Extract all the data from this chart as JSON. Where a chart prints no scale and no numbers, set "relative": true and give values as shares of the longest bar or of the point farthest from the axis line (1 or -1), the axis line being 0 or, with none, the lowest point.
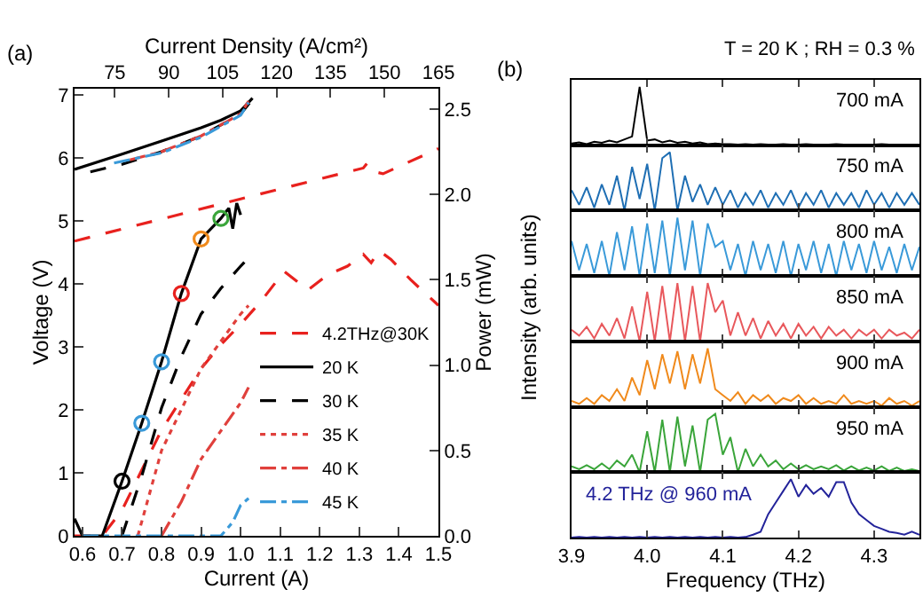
{
  "chart_data": [
    {
      "type": "line",
      "xlabel": "Current (A)",
      "ylabel": "Voltage (V)",
      "y2label": "Power (mW)",
      "x2label": "Current Density (A/cm²)",
      "annotations": [
        "(a)"
      ],
      "xlim": [
        0.58,
        1.5
      ],
      "xticks": [
        {
          "value": 0.6,
          "label": "0.6"
        },
        {
          "value": 0.7,
          "label": "0.7"
        },
        {
          "value": 0.8,
          "label": "0.8"
        },
        {
          "value": 0.9,
          "label": "0.9"
        },
        {
          "value": 1.0,
          "label": "1.0"
        },
        {
          "value": 1.1,
          "label": "1.1"
        },
        {
          "value": 1.2,
          "label": "1.2"
        },
        {
          "value": 1.3,
          "label": "1.3"
        },
        {
          "value": 1.4,
          "label": "1.4"
        },
        {
          "value": 1.5,
          "label": "1.5"
        }
      ],
      "x2lim": [
        63.8,
        165
      ],
      "x2ticks": [
        75,
        90,
        105,
        120,
        135,
        150,
        165
      ],
      "ylim": [
        0,
        7.1
      ],
      "yticks": [
        0,
        1,
        2,
        3,
        4,
        5,
        6,
        7
      ],
      "y2lim": [
        0,
        2.62
      ],
      "y2ticks": [
        {
          "value": 0,
          "label": "0.0"
        },
        {
          "value": 0.5,
          "label": "0.5"
        },
        {
          "value": 1.0,
          "label": "1.0"
        },
        {
          "value": 1.5,
          "label": "1.5"
        },
        {
          "value": 2.0,
          "label": "2.0"
        },
        {
          "value": 2.5,
          "label": "2.5"
        }
      ],
      "legend": "right",
      "series": [
        {
          "name": "4.2THz@30K",
          "color": "#e8211e",
          "line_style": "dashed",
          "axis": "y2",
          "x": [
            0.58,
            0.65,
            0.7,
            0.8,
            0.9,
            0.95,
            1.0,
            1.05,
            1.11,
            1.17,
            1.22,
            1.27,
            1.31,
            1.33,
            1.35,
            1.38,
            1.43,
            1.5
          ],
          "values": [
            0.0,
            0.0,
            0.15,
            0.62,
            0.98,
            1.12,
            1.24,
            1.37,
            1.55,
            1.44,
            1.53,
            1.58,
            1.65,
            1.6,
            1.67,
            1.62,
            1.5,
            1.35
          ]
        },
        {
          "name": "20 K",
          "color": "#000000",
          "line_style": "solid",
          "axis": "y2",
          "x": [
            0.58,
            0.6,
            0.65,
            0.7,
            0.75,
            0.8,
            0.85,
            0.9,
            0.95,
            0.97,
            0.98,
            0.99,
            1.0
          ],
          "values": [
            0.1,
            0.0,
            0.0,
            0.32,
            0.66,
            1.02,
            1.42,
            1.74,
            1.86,
            1.92,
            1.8,
            1.95,
            1.88
          ]
        },
        {
          "name": "30 K",
          "color": "#000000",
          "line_style": "dashed",
          "axis": "y2",
          "x": [
            0.7,
            0.75,
            0.8,
            0.85,
            0.9,
            0.95,
            1.0,
            1.02
          ],
          "values": [
            0.0,
            0.35,
            0.75,
            1.05,
            1.3,
            1.45,
            1.58,
            1.63
          ]
        },
        {
          "name": "35 K",
          "color": "#e0403c",
          "line_style": "dotted",
          "axis": "y2",
          "x": [
            0.74,
            0.8,
            0.9,
            1.0,
            1.02
          ],
          "values": [
            0.0,
            0.5,
            0.98,
            1.3,
            1.35
          ]
        },
        {
          "name": "40 K",
          "color": "#e0403c",
          "line_style": "dashdot",
          "axis": "y2",
          "x": [
            0.8,
            0.85,
            0.9,
            1.0,
            1.02
          ],
          "values": [
            0.0,
            0.2,
            0.45,
            0.78,
            0.87
          ]
        },
        {
          "name": "45 K",
          "color": "#3a9ad9",
          "line_style": "dashdot",
          "axis": "y2",
          "x": [
            0.6,
            0.95,
            0.98,
            1.0,
            1.02
          ],
          "values": [
            0.0,
            0.0,
            0.08,
            0.18,
            0.22
          ]
        },
        {
          "type": "scatter",
          "marker": "circle",
          "axis": "y2",
          "x": [
            0.7,
            0.75,
            0.8,
            0.85,
            0.9,
            0.95
          ],
          "values": [
            0.32,
            0.66,
            1.02,
            1.42,
            1.74,
            1.86
          ],
          "colors": [
            "#000000",
            "#3a9ad9",
            "#3a9ad9",
            "#e8211e",
            "#f08a1c",
            "#3aa53a"
          ]
        },
        {
          "color": "#e8211e",
          "line_style": "dashed",
          "x": [
            0.58,
            1.0,
            1.31,
            1.32,
            1.34,
            1.36,
            1.5
          ],
          "values": [
            4.68,
            5.35,
            5.84,
            5.92,
            5.78,
            5.75,
            6.15
          ]
        },
        {
          "color": "#000000",
          "line_style": "solid",
          "x": [
            0.58,
            0.7,
            0.8,
            0.9,
            0.95,
            1.0,
            1.03
          ],
          "values": [
            5.82,
            6.06,
            6.27,
            6.48,
            6.6,
            6.75,
            6.95
          ]
        },
        {
          "color": "#000000",
          "line_style": "dashed",
          "x": [
            0.62,
            0.7,
            0.8,
            0.9,
            1.0,
            1.03
          ],
          "values": [
            5.78,
            5.9,
            6.1,
            6.35,
            6.7,
            6.93
          ]
        },
        {
          "color": "#e0403c",
          "line_style": "dashdot",
          "x": [
            0.72,
            0.8,
            0.9,
            1.0,
            1.02
          ],
          "values": [
            5.97,
            6.1,
            6.35,
            6.7,
            6.9
          ]
        },
        {
          "color": "#3a9ad9",
          "line_style": "dashdot",
          "x": [
            0.68,
            0.8,
            0.9,
            1.0,
            1.02
          ],
          "values": [
            5.92,
            6.08,
            6.33,
            6.68,
            6.88
          ]
        }
      ]
    },
    {
      "type": "line",
      "relative": true,
      "title": "T = 20 K ; RH = 0.3 %",
      "annotations": [
        "(b)",
        "700 mA"
      ],
      "tick_labels": false,
      "xlim": [
        3.9,
        4.36
      ],
      "xticks": [
        {
          "value": 3.9,
          "label": null
        },
        {
          "value": 4.0,
          "label": null
        },
        {
          "value": 4.1,
          "label": null
        },
        {
          "value": 4.2,
          "label": null
        },
        {
          "value": 4.3,
          "label": null
        }
      ],
      "series": [
        {
          "color": "#000000",
          "x": [
            3.9,
            3.91,
            3.92,
            3.93,
            3.94,
            3.95,
            3.96,
            3.97,
            3.98,
            3.99,
            4.0,
            4.01,
            4.02,
            4.03,
            4.04,
            4.05,
            4.06,
            4.07,
            4.08,
            4.09,
            4.1,
            4.11,
            4.12,
            4.13,
            4.14,
            4.15,
            4.16,
            4.17,
            4.18,
            4.19,
            4.2,
            4.21,
            4.22,
            4.23,
            4.24,
            4.25,
            4.26,
            4.27,
            4.28,
            4.29,
            4.3,
            4.31,
            4.32,
            4.33,
            4.34,
            4.35,
            4.36
          ],
          "values": [
            0.03,
            0.05,
            0.02,
            0.06,
            0.04,
            0.08,
            0.05,
            0.1,
            0.15,
            1.0,
            0.08,
            0.1,
            0.05,
            0.08,
            0.04,
            0.06,
            0.03,
            0.05,
            0.02,
            0.03,
            0.02,
            0.02,
            0.01,
            0.02,
            0.01,
            0.02,
            0.01,
            0.01,
            0.02,
            0.01,
            0.01,
            0.02,
            0.01,
            0.01,
            0.01,
            0.02,
            0.01,
            0.01,
            0.01,
            0.01,
            0.01,
            0.02,
            0.01,
            0.01,
            0.01,
            0.01,
            0.01
          ]
        }
      ]
    },
    {
      "type": "line",
      "relative": true,
      "annotations": [
        "750 mA"
      ],
      "tick_labels": false,
      "xlim": [
        3.9,
        4.36
      ],
      "xticks": [
        {
          "value": 3.9,
          "label": null
        },
        {
          "value": 4.0,
          "label": null
        },
        {
          "value": 4.1,
          "label": null
        },
        {
          "value": 4.2,
          "label": null
        },
        {
          "value": 4.3,
          "label": null
        }
      ],
      "series": [
        {
          "color": "#1f6fb4",
          "x": [
            3.9,
            3.91,
            3.92,
            3.93,
            3.94,
            3.95,
            3.96,
            3.97,
            3.98,
            3.99,
            4.0,
            4.01,
            4.02,
            4.03,
            4.04,
            4.05,
            4.06,
            4.07,
            4.08,
            4.09,
            4.1,
            4.11,
            4.12,
            4.13,
            4.14,
            4.15,
            4.16,
            4.17,
            4.18,
            4.19,
            4.2,
            4.21,
            4.22,
            4.23,
            4.24,
            4.25,
            4.26,
            4.27,
            4.28,
            4.29,
            4.3,
            4.31,
            4.32,
            4.33,
            4.34,
            4.35,
            4.36
          ],
          "values": [
            0.35,
            0.1,
            0.4,
            0.05,
            0.45,
            0.1,
            0.6,
            0.0,
            0.75,
            0.2,
            0.8,
            0.0,
            0.9,
            1.0,
            0.0,
            0.6,
            0.15,
            0.45,
            0.1,
            0.4,
            0.1,
            0.35,
            0.05,
            0.3,
            0.1,
            0.35,
            0.05,
            0.3,
            0.1,
            0.35,
            0.05,
            0.3,
            0.1,
            0.35,
            0.05,
            0.3,
            0.1,
            0.3,
            0.05,
            0.35,
            0.1,
            0.3,
            0.05,
            0.3,
            0.1,
            0.3,
            0.1
          ]
        }
      ]
    },
    {
      "type": "line",
      "relative": true,
      "annotations": [
        "800 mA"
      ],
      "tick_labels": false,
      "xlim": [
        3.9,
        4.36
      ],
      "xticks": [
        {
          "value": 3.9,
          "label": null
        },
        {
          "value": 4.0,
          "label": null
        },
        {
          "value": 4.1,
          "label": null
        },
        {
          "value": 4.2,
          "label": null
        },
        {
          "value": 4.3,
          "label": null
        }
      ],
      "series": [
        {
          "color": "#3a9ad9",
          "x": [
            3.9,
            3.91,
            3.92,
            3.93,
            3.94,
            3.95,
            3.96,
            3.97,
            3.98,
            3.99,
            4.0,
            4.01,
            4.02,
            4.03,
            4.04,
            4.05,
            4.06,
            4.07,
            4.08,
            4.09,
            4.1,
            4.11,
            4.12,
            4.13,
            4.14,
            4.15,
            4.16,
            4.17,
            4.18,
            4.19,
            4.2,
            4.21,
            4.22,
            4.23,
            4.24,
            4.25,
            4.26,
            4.27,
            4.28,
            4.29,
            4.3,
            4.31,
            4.32,
            4.33,
            4.34,
            4.35,
            4.36
          ],
          "values": [
            0.6,
            0.1,
            0.55,
            0.05,
            0.6,
            0.0,
            0.75,
            0.1,
            0.85,
            0.0,
            0.9,
            0.05,
            0.95,
            0.0,
            1.0,
            0.1,
            0.95,
            0.0,
            0.9,
            0.5,
            0.6,
            0.1,
            0.55,
            0.0,
            0.6,
            0.1,
            0.55,
            0.05,
            0.6,
            0.0,
            0.55,
            0.1,
            0.6,
            0.05,
            0.55,
            0.0,
            0.6,
            0.1,
            0.55,
            0.05,
            0.6,
            0.1,
            0.5,
            0.05,
            0.55,
            0.1,
            0.5
          ]
        }
      ]
    },
    {
      "type": "line",
      "relative": true,
      "ylabel": "Intensity (arb. units)",
      "annotations": [
        "850 mA"
      ],
      "tick_labels": false,
      "xlim": [
        3.9,
        4.36
      ],
      "xticks": [
        {
          "value": 3.9,
          "label": null
        },
        {
          "value": 4.0,
          "label": null
        },
        {
          "value": 4.1,
          "label": null
        },
        {
          "value": 4.2,
          "label": null
        },
        {
          "value": 4.3,
          "label": null
        }
      ],
      "series": [
        {
          "color": "#e8585c",
          "x": [
            3.9,
            3.91,
            3.92,
            3.93,
            3.94,
            3.95,
            3.96,
            3.97,
            3.98,
            3.99,
            4.0,
            4.01,
            4.02,
            4.03,
            4.04,
            4.05,
            4.06,
            4.07,
            4.08,
            4.09,
            4.1,
            4.11,
            4.12,
            4.13,
            4.14,
            4.15,
            4.16,
            4.17,
            4.18,
            4.19,
            4.2,
            4.21,
            4.22,
            4.23,
            4.24,
            4.25,
            4.26,
            4.27,
            4.28,
            4.29,
            4.3,
            4.31,
            4.32,
            4.33,
            4.34,
            4.35,
            4.36
          ],
          "values": [
            0.2,
            0.1,
            0.25,
            0.05,
            0.3,
            0.1,
            0.4,
            0.05,
            0.6,
            0.0,
            0.85,
            0.0,
            0.95,
            0.0,
            1.0,
            0.0,
            0.95,
            0.0,
            1.0,
            0.5,
            0.7,
            0.1,
            0.5,
            0.1,
            0.4,
            0.05,
            0.35,
            0.1,
            0.3,
            0.05,
            0.3,
            0.1,
            0.25,
            0.05,
            0.25,
            0.1,
            0.2,
            0.05,
            0.2,
            0.1,
            0.2,
            0.05,
            0.2,
            0.1,
            0.15,
            0.05,
            0.2
          ]
        }
      ]
    },
    {
      "type": "line",
      "relative": true,
      "annotations": [
        "900 mA"
      ],
      "tick_labels": false,
      "xlim": [
        3.9,
        4.36
      ],
      "xticks": [
        {
          "value": 3.9,
          "label": null
        },
        {
          "value": 4.0,
          "label": null
        },
        {
          "value": 4.1,
          "label": null
        },
        {
          "value": 4.2,
          "label": null
        },
        {
          "value": 4.3,
          "label": null
        }
      ],
      "series": [
        {
          "color": "#f08a1c",
          "x": [
            3.9,
            3.91,
            3.92,
            3.93,
            3.94,
            3.95,
            3.96,
            3.97,
            3.98,
            3.99,
            4.0,
            4.01,
            4.02,
            4.03,
            4.04,
            4.05,
            4.06,
            4.07,
            4.08,
            4.09,
            4.1,
            4.11,
            4.12,
            4.13,
            4.14,
            4.15,
            4.16,
            4.17,
            4.18,
            4.19,
            4.2,
            4.21,
            4.22,
            4.23,
            4.24,
            4.25,
            4.26,
            4.27,
            4.28,
            4.29,
            4.3,
            4.31,
            4.32,
            4.33,
            4.34,
            4.35,
            4.36
          ],
          "values": [
            0.1,
            0.05,
            0.15,
            0.05,
            0.2,
            0.1,
            0.3,
            0.1,
            0.5,
            0.2,
            0.8,
            0.3,
            0.9,
            0.4,
            0.95,
            0.3,
            0.9,
            0.4,
            1.0,
            0.3,
            0.2,
            0.1,
            0.25,
            0.05,
            0.2,
            0.1,
            0.2,
            0.05,
            0.15,
            0.1,
            0.2,
            0.05,
            0.15,
            0.05,
            0.1,
            0.05,
            0.2,
            0.05,
            0.1,
            0.05,
            0.1,
            0.02,
            0.15,
            0.05,
            0.1,
            0.02,
            0.1
          ]
        }
      ]
    },
    {
      "type": "line",
      "relative": true,
      "annotations": [
        "950 mA"
      ],
      "tick_labels": false,
      "xlim": [
        3.9,
        4.36
      ],
      "xticks": [
        {
          "value": 3.9,
          "label": null
        },
        {
          "value": 4.0,
          "label": null
        },
        {
          "value": 4.1,
          "label": null
        },
        {
          "value": 4.2,
          "label": null
        },
        {
          "value": 4.3,
          "label": null
        }
      ],
      "series": [
        {
          "color": "#3aa53a",
          "x": [
            3.9,
            3.91,
            3.92,
            3.93,
            3.94,
            3.95,
            3.96,
            3.97,
            3.98,
            3.99,
            4.0,
            4.01,
            4.02,
            4.03,
            4.04,
            4.05,
            4.06,
            4.07,
            4.08,
            4.09,
            4.1,
            4.11,
            4.12,
            4.13,
            4.14,
            4.15,
            4.16,
            4.17,
            4.18,
            4.19,
            4.2,
            4.21,
            4.22,
            4.23,
            4.24,
            4.25,
            4.26,
            4.27,
            4.28,
            4.29,
            4.3,
            4.31,
            4.32,
            4.33,
            4.34,
            4.35,
            4.36
          ],
          "values": [
            0.1,
            0.05,
            0.12,
            0.05,
            0.15,
            0.05,
            0.2,
            0.1,
            0.3,
            0.0,
            0.7,
            0.0,
            0.9,
            0.0,
            0.95,
            0.1,
            0.8,
            0.0,
            0.9,
            1.0,
            0.3,
            0.6,
            0.0,
            0.4,
            0.1,
            0.3,
            0.1,
            0.2,
            0.05,
            0.15,
            0.05,
            0.12,
            0.05,
            0.1,
            0.05,
            0.12,
            0.03,
            0.1,
            0.03,
            0.08,
            0.03,
            0.1,
            0.02,
            0.08,
            0.02,
            0.05,
            0.02
          ]
        }
      ]
    },
    {
      "type": "line",
      "relative": true,
      "xlabel": "Frequency (THz)",
      "annotations": [
        "4.2 THz @ 960 mA"
      ],
      "tick_labels": "x",
      "xlim": [
        3.9,
        4.36
      ],
      "xticks": [
        {
          "value": 3.9,
          "label": "3.9"
        },
        {
          "value": 4.0,
          "label": "4.0"
        },
        {
          "value": 4.1,
          "label": "4.1"
        },
        {
          "value": 4.2,
          "label": "4.2"
        },
        {
          "value": 4.3,
          "label": "4.3"
        }
      ],
      "series": [
        {
          "color": "#23239a",
          "x": [
            3.9,
            3.91,
            3.92,
            3.93,
            3.94,
            3.95,
            3.96,
            3.97,
            3.98,
            3.99,
            4.0,
            4.01,
            4.02,
            4.03,
            4.04,
            4.05,
            4.06,
            4.07,
            4.08,
            4.09,
            4.1,
            4.11,
            4.12,
            4.13,
            4.14,
            4.15,
            4.16,
            4.17,
            4.18,
            4.19,
            4.2,
            4.21,
            4.22,
            4.23,
            4.24,
            4.25,
            4.26,
            4.27,
            4.28,
            4.29,
            4.3,
            4.31,
            4.32,
            4.33,
            4.34,
            4.35,
            4.36
          ],
          "values": [
            0.0,
            0.01,
            0.0,
            0.01,
            0.0,
            0.01,
            0.0,
            0.01,
            0.0,
            0.01,
            0.0,
            0.01,
            0.0,
            0.01,
            0.0,
            0.01,
            0.0,
            0.01,
            0.0,
            0.01,
            0.0,
            0.01,
            0.0,
            0.01,
            0.05,
            0.1,
            0.4,
            0.6,
            0.8,
            1.0,
            0.7,
            0.9,
            0.75,
            0.85,
            0.7,
            0.95,
            0.95,
            0.6,
            0.4,
            0.3,
            0.2,
            0.15,
            0.1,
            0.08,
            0.05,
            0.1,
            0.05
          ]
        }
      ]
    }
  ]
}
